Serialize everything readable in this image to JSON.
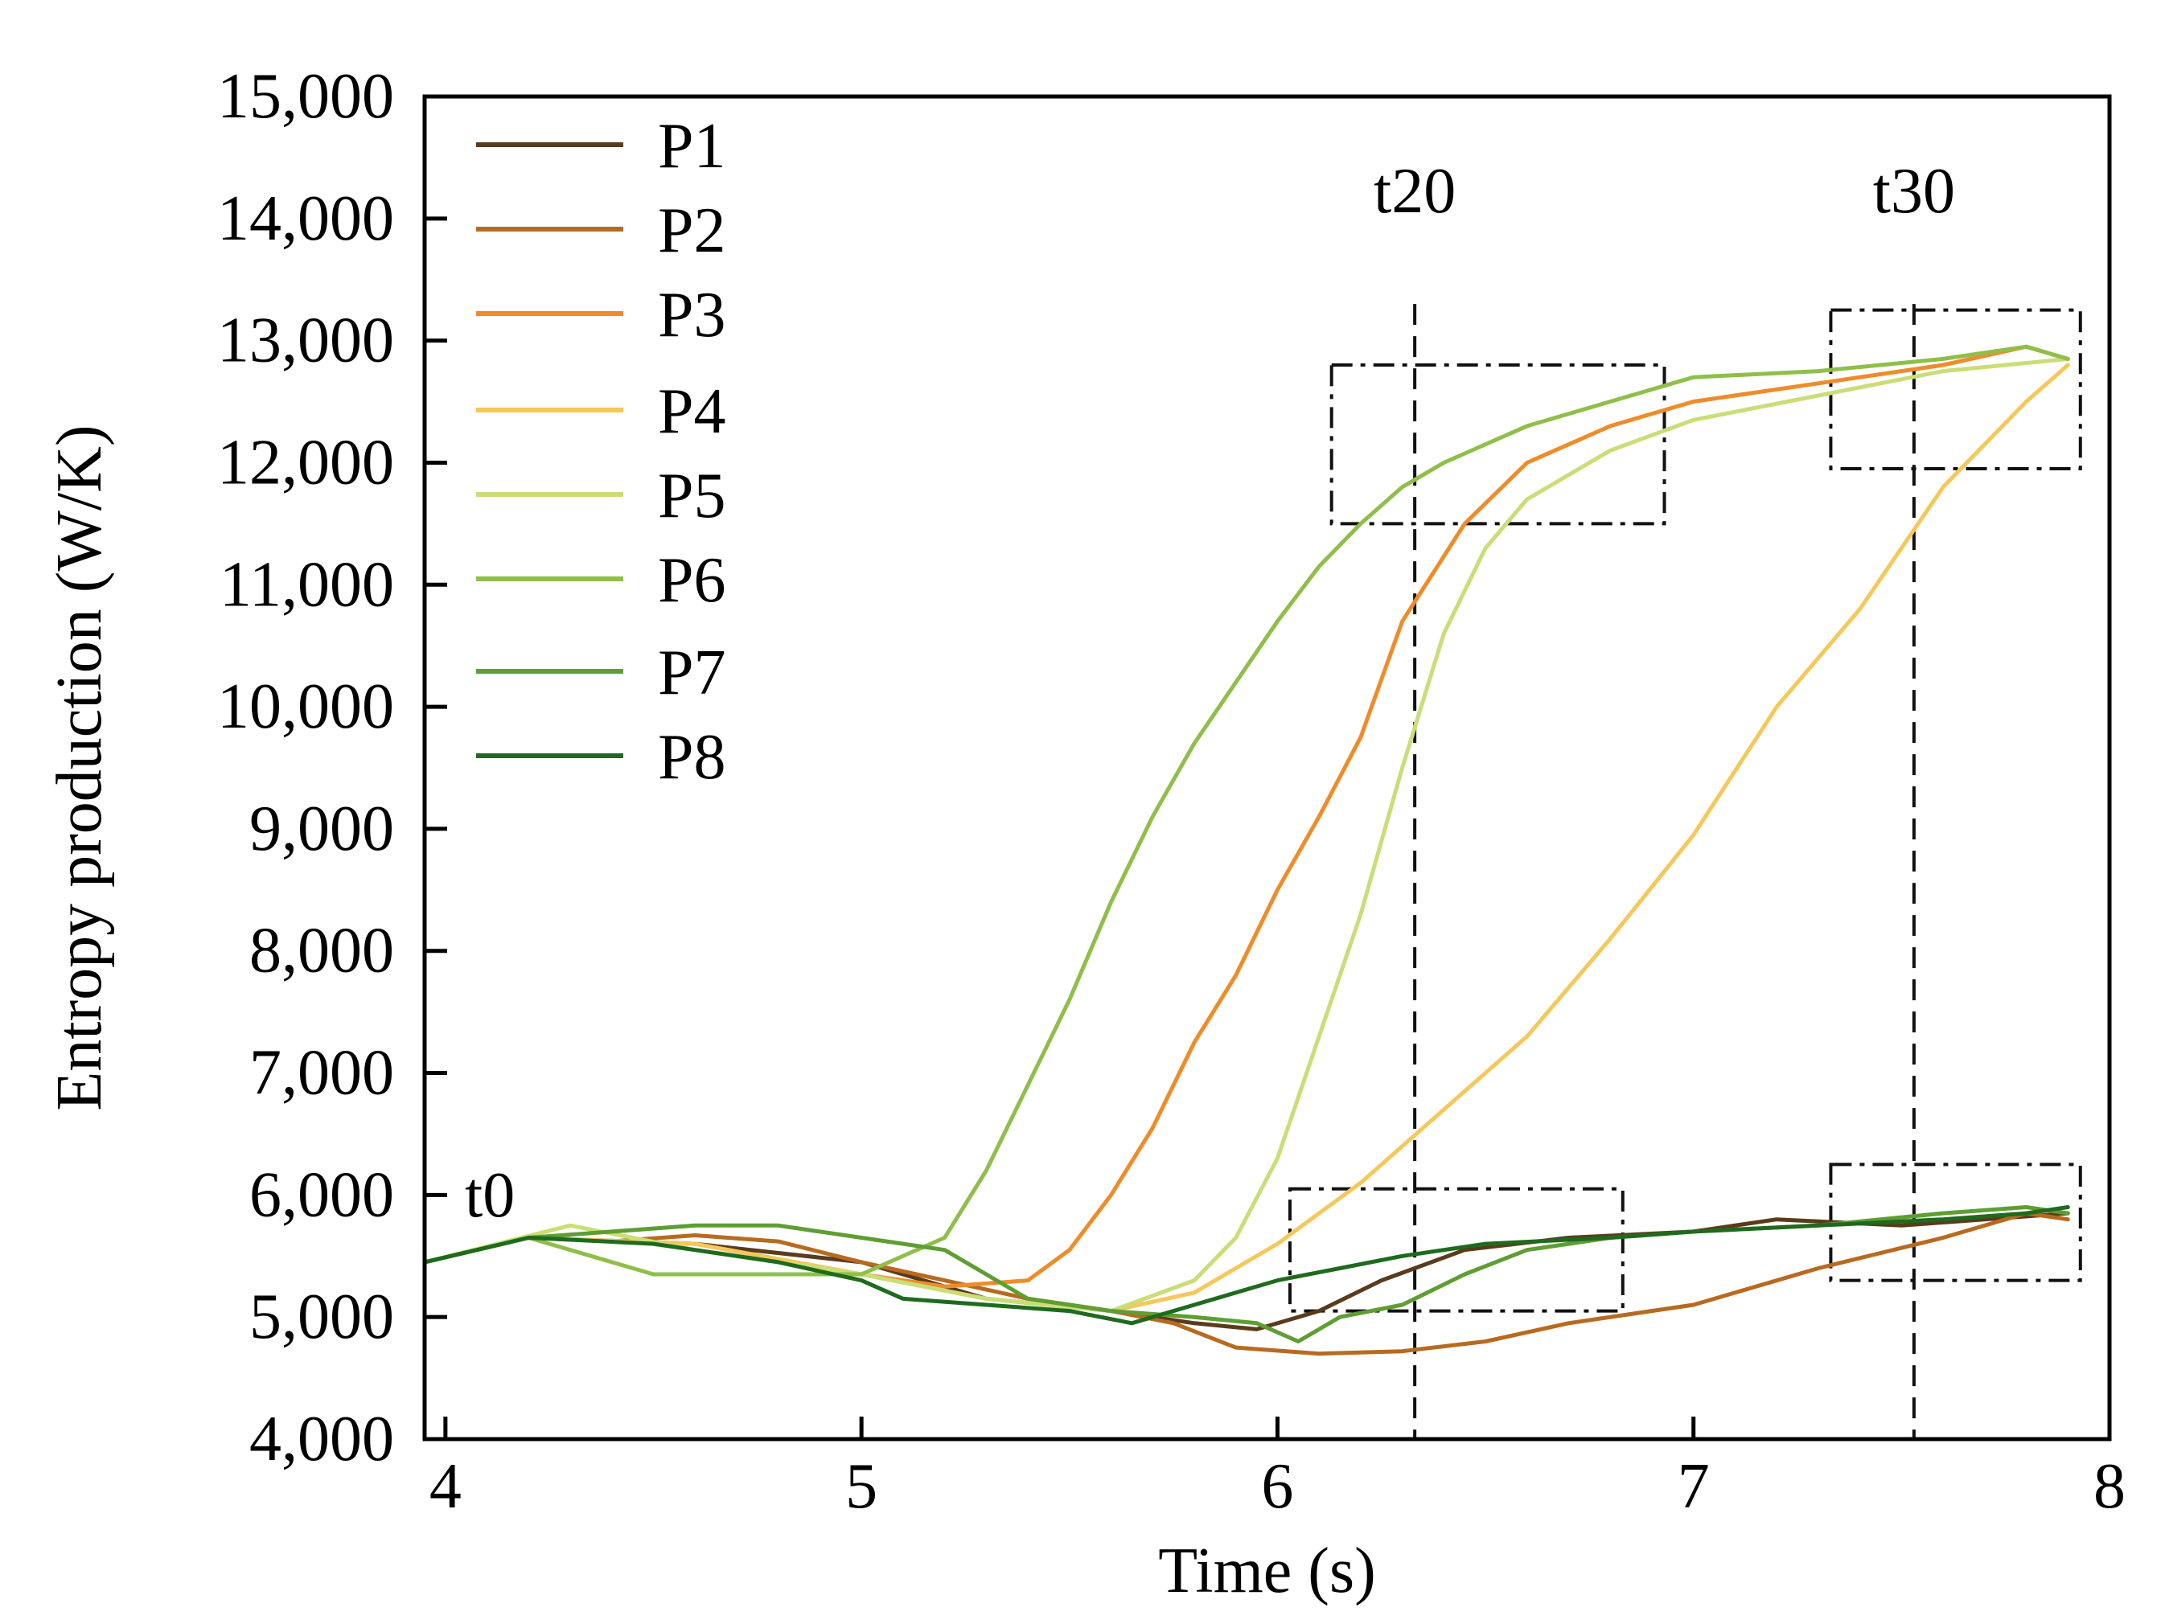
{
  "chart_data": {
    "type": "line",
    "title": "",
    "xlabel": "Time (s)",
    "ylabel": "Entropy production (W/K)",
    "xlim": [
      3.95,
      8.0
    ],
    "ylim": [
      4000,
      15000
    ],
    "xticks": [
      4,
      5,
      6,
      7,
      8
    ],
    "yticks": [
      4000,
      5000,
      6000,
      7000,
      8000,
      9000,
      10000,
      11000,
      12000,
      13000,
      14000,
      15000
    ],
    "ytick_labels": [
      "4,000",
      "5,000",
      "6,000",
      "7,000",
      "8,000",
      "9,000",
      "10,000",
      "11,000",
      "12,000",
      "13,000",
      "14,000",
      "15,000"
    ],
    "xtick_labels": [
      "4",
      "5",
      "6",
      "7",
      "8"
    ],
    "grid": false,
    "legend_position": "top-left",
    "series": [
      {
        "name": "P1",
        "color": "#5a3b1c",
        "x": [
          3.95,
          4.2,
          4.6,
          5.0,
          5.3,
          5.6,
          5.8,
          5.95,
          6.1,
          6.25,
          6.45,
          6.7,
          7.0,
          7.2,
          7.5,
          7.9
        ],
        "y": [
          5450,
          5650,
          5600,
          5450,
          5150,
          5050,
          4950,
          4900,
          5050,
          5300,
          5550,
          5650,
          5700,
          5800,
          5750,
          5850
        ]
      },
      {
        "name": "P2",
        "color": "#b86a1f",
        "x": [
          3.95,
          4.2,
          4.4,
          4.6,
          4.8,
          5.0,
          5.2,
          5.4,
          5.6,
          5.75,
          5.9,
          6.1,
          6.3,
          6.5,
          6.7,
          7.0,
          7.3,
          7.6,
          7.8,
          7.9
        ],
        "y": [
          5450,
          5650,
          5620,
          5670,
          5620,
          5450,
          5300,
          5150,
          5050,
          4950,
          4750,
          4700,
          4720,
          4800,
          4950,
          5100,
          5400,
          5650,
          5850,
          5800
        ]
      },
      {
        "name": "P3",
        "color": "#ef8c2a",
        "x": [
          3.95,
          4.2,
          4.6,
          5.0,
          5.2,
          5.4,
          5.5,
          5.6,
          5.7,
          5.8,
          5.9,
          6.0,
          6.1,
          6.2,
          6.3,
          6.45,
          6.6,
          6.8,
          7.0,
          7.3,
          7.6,
          7.8,
          7.9
        ],
        "y": [
          5450,
          5650,
          5600,
          5350,
          5250,
          5300,
          5550,
          6000,
          6550,
          7250,
          7800,
          8500,
          9100,
          9750,
          10700,
          11500,
          12000,
          12300,
          12500,
          12650,
          12800,
          12950,
          12850
        ]
      },
      {
        "name": "P4",
        "color": "#f5c85a",
        "x": [
          3.95,
          4.2,
          4.6,
          5.0,
          5.3,
          5.6,
          5.8,
          6.0,
          6.2,
          6.4,
          6.6,
          6.8,
          7.0,
          7.2,
          7.4,
          7.6,
          7.8,
          7.9
        ],
        "y": [
          5450,
          5650,
          5600,
          5350,
          5150,
          5050,
          5200,
          5600,
          6100,
          6700,
          7300,
          8100,
          8950,
          10000,
          10800,
          11800,
          12500,
          12800
        ]
      },
      {
        "name": "P5",
        "color": "#c9de76",
        "x": [
          3.95,
          4.3,
          4.6,
          5.0,
          5.3,
          5.6,
          5.8,
          5.9,
          6.0,
          6.1,
          6.2,
          6.3,
          6.4,
          6.5,
          6.6,
          6.8,
          7.0,
          7.3,
          7.6,
          7.9
        ],
        "y": [
          5450,
          5750,
          5550,
          5350,
          5150,
          5050,
          5300,
          5650,
          6300,
          7300,
          8300,
          9500,
          10600,
          11300,
          11700,
          12100,
          12350,
          12550,
          12750,
          12850
        ]
      },
      {
        "name": "P6",
        "color": "#8fbf4a",
        "x": [
          3.95,
          4.2,
          4.5,
          4.8,
          5.0,
          5.2,
          5.3,
          5.4,
          5.5,
          5.6,
          5.7,
          5.8,
          5.9,
          6.0,
          6.1,
          6.2,
          6.3,
          6.4,
          6.6,
          6.8,
          7.0,
          7.3,
          7.6,
          7.8,
          7.9
        ],
        "y": [
          5450,
          5650,
          5350,
          5350,
          5350,
          5650,
          6200,
          6900,
          7600,
          8400,
          9100,
          9700,
          10200,
          10700,
          11150,
          11500,
          11800,
          12000,
          12300,
          12500,
          12700,
          12750,
          12850,
          12950,
          12850
        ]
      },
      {
        "name": "P7",
        "color": "#5e9e32",
        "x": [
          3.95,
          4.2,
          4.4,
          4.6,
          4.8,
          5.0,
          5.2,
          5.4,
          5.6,
          5.8,
          5.95,
          6.05,
          6.15,
          6.3,
          6.45,
          6.6,
          6.8,
          7.0,
          7.3,
          7.6,
          7.8,
          7.9
        ],
        "y": [
          5450,
          5650,
          5700,
          5750,
          5750,
          5650,
          5550,
          5150,
          5050,
          5000,
          4950,
          4800,
          5000,
          5100,
          5350,
          5550,
          5650,
          5700,
          5750,
          5850,
          5900,
          5850
        ]
      },
      {
        "name": "P8",
        "color": "#1e6b1e",
        "x": [
          3.95,
          4.2,
          4.5,
          4.8,
          5.0,
          5.1,
          5.3,
          5.5,
          5.65,
          5.8,
          6.0,
          6.15,
          6.3,
          6.5,
          6.8,
          7.0,
          7.3,
          7.6,
          7.8,
          7.9
        ],
        "y": [
          5450,
          5650,
          5600,
          5450,
          5300,
          5150,
          5100,
          5050,
          4950,
          5100,
          5300,
          5400,
          5500,
          5600,
          5650,
          5700,
          5750,
          5800,
          5850,
          5900
        ]
      }
    ],
    "annotations": [
      {
        "label": "t0",
        "x": 3.95
      },
      {
        "label": "t20",
        "x": 6.33
      },
      {
        "label": "t30",
        "x": 7.53
      }
    ],
    "highlight_boxes": [
      {
        "x0": 6.13,
        "x1": 6.93,
        "y0": 11500,
        "y1": 12800
      },
      {
        "x0": 7.33,
        "x1": 7.93,
        "y0": 11950,
        "y1": 13250
      },
      {
        "x0": 6.03,
        "x1": 6.83,
        "y0": 5050,
        "y1": 6050
      },
      {
        "x0": 7.33,
        "x1": 7.93,
        "y0": 5300,
        "y1": 6250
      }
    ]
  }
}
